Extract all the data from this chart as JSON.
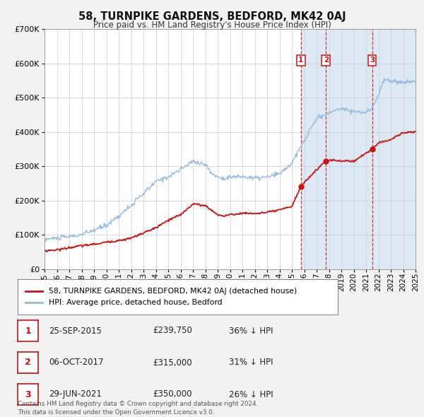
{
  "title": "58, TURNPIKE GARDENS, BEDFORD, MK42 0AJ",
  "subtitle": "Price paid vs. HM Land Registry's House Price Index (HPI)",
  "bg_color": "#f2f2f2",
  "plot_bg_color": "#ffffff",
  "grid_color": "#cccccc",
  "hpi_color": "#93b8e0",
  "sale_color": "#cc1111",
  "ylim": [
    0,
    700000
  ],
  "yticks": [
    0,
    100000,
    200000,
    300000,
    400000,
    500000,
    600000,
    700000
  ],
  "ytick_labels": [
    "£0",
    "£100K",
    "£200K",
    "£300K",
    "£400K",
    "£500K",
    "£600K",
    "£700K"
  ],
  "xmin": 1995,
  "xmax": 2025,
  "legend_label_sale": "58, TURNPIKE GARDENS, BEDFORD, MK42 0AJ (detached house)",
  "legend_label_hpi": "HPI: Average price, detached house, Bedford",
  "sales": [
    {
      "num": 1,
      "date": "25-SEP-2015",
      "x": 2015.73,
      "price": 239750,
      "pct": "36%"
    },
    {
      "num": 2,
      "date": "06-OCT-2017",
      "x": 2017.76,
      "price": 315000,
      "pct": "31%"
    },
    {
      "num": 3,
      "date": "29-JUN-2021",
      "x": 2021.49,
      "price": 350000,
      "pct": "26%"
    }
  ],
  "footer_line1": "Contains HM Land Registry data © Crown copyright and database right 2024.",
  "footer_line2": "This data is licensed under the Open Government Licence v3.0.",
  "highlight_color": "#dce9f5",
  "vline_color": "#cc1111",
  "hpi_knots_x": [
    1995,
    1996,
    1997,
    1998,
    1999,
    2000,
    2001,
    2002,
    2003,
    2004,
    2005,
    2006,
    2007,
    2008,
    2008.5,
    2009,
    2009.5,
    2010,
    2011,
    2012,
    2013,
    2014,
    2015,
    2016,
    2017,
    2018,
    2019,
    2020,
    2021,
    2021.5,
    2022,
    2022.5,
    2023,
    2024,
    2025
  ],
  "hpi_knots_y": [
    87000,
    90000,
    94000,
    100000,
    113000,
    128000,
    155000,
    185000,
    220000,
    255000,
    270000,
    290000,
    315000,
    305000,
    280000,
    268000,
    265000,
    268000,
    270000,
    265000,
    268000,
    278000,
    308000,
    375000,
    440000,
    455000,
    470000,
    460000,
    455000,
    470000,
    510000,
    555000,
    548000,
    545000,
    548000
  ],
  "sale_knots_x": [
    1995,
    1996,
    1997,
    1998,
    1999,
    2000,
    2001,
    2002,
    2003,
    2004,
    2005,
    2006,
    2007,
    2008,
    2008.5,
    2009,
    2009.5,
    2010,
    2011,
    2012,
    2013,
    2014,
    2015,
    2015.73,
    2016,
    2017,
    2017.76,
    2018,
    2019,
    2020,
    2021,
    2021.49,
    2022,
    2023,
    2024,
    2025
  ],
  "sale_knots_y": [
    53000,
    56000,
    62000,
    68000,
    72000,
    78000,
    83000,
    90000,
    105000,
    120000,
    142000,
    158000,
    190000,
    185000,
    172000,
    158000,
    155000,
    158000,
    163000,
    162000,
    165000,
    172000,
    183000,
    239750,
    252000,
    290000,
    315000,
    318000,
    315000,
    315000,
    338000,
    350000,
    368000,
    378000,
    398000,
    400000
  ]
}
